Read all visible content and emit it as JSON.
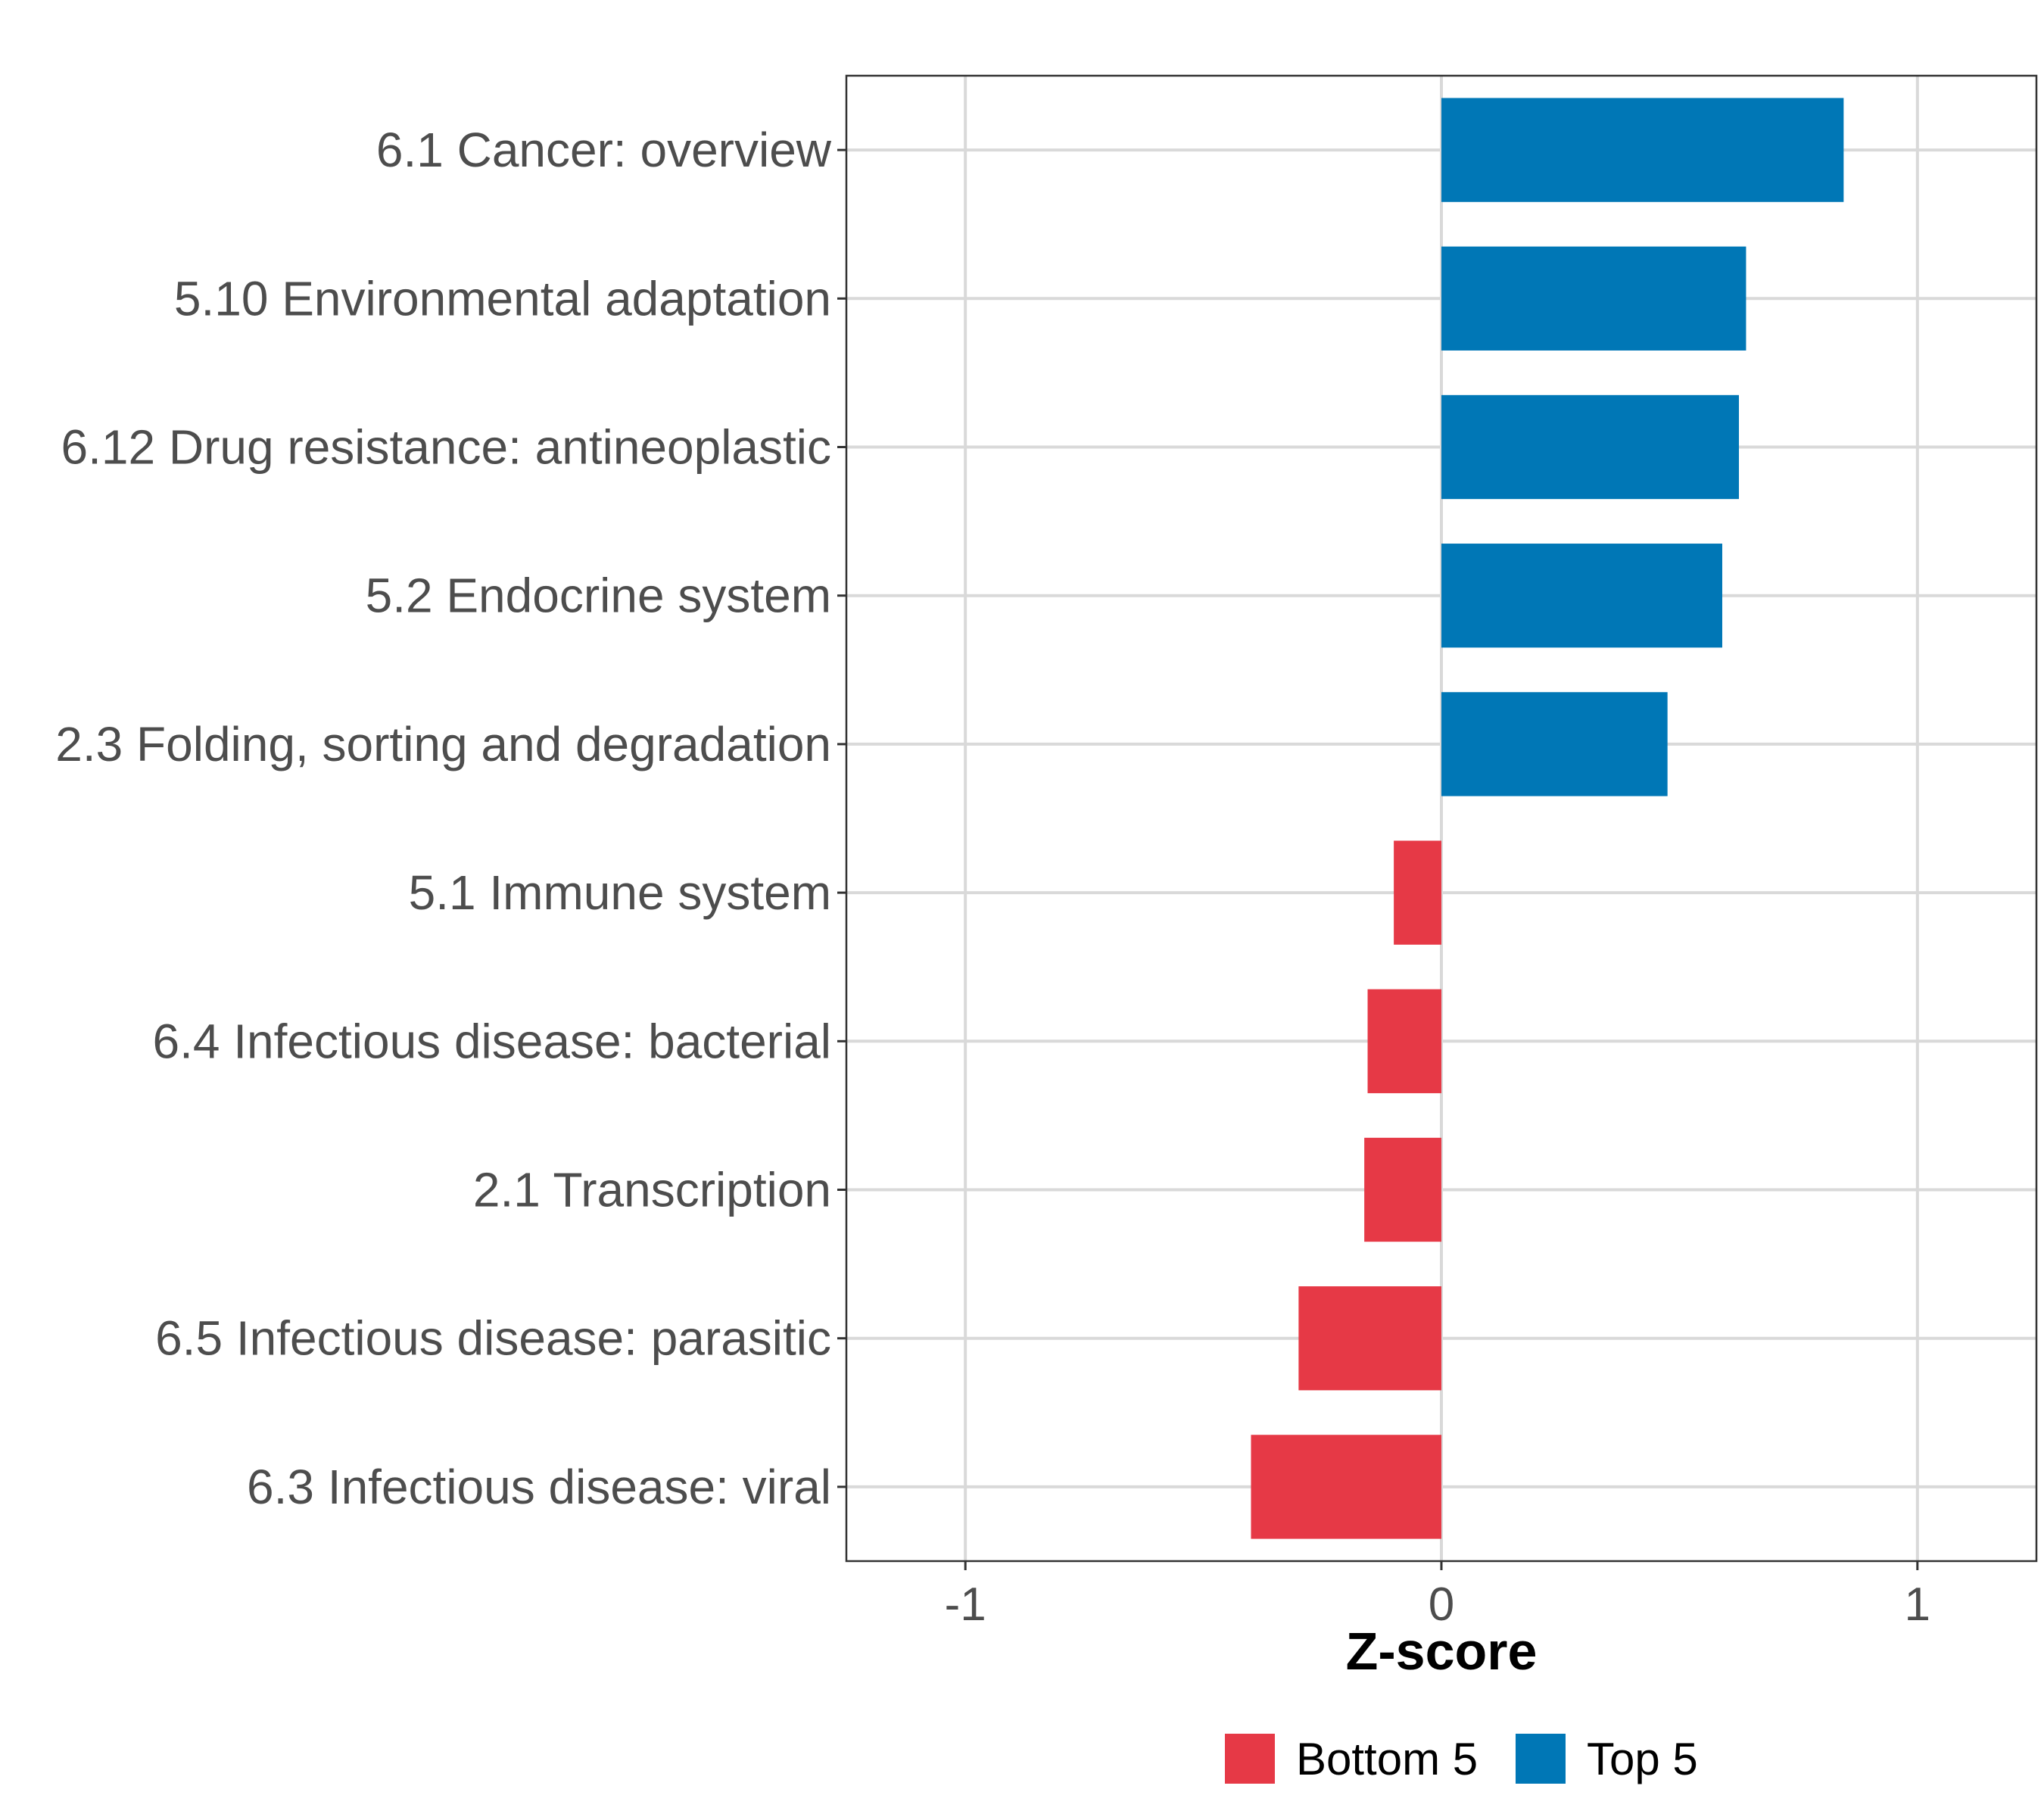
{
  "chart_data": {
    "type": "bar",
    "orientation": "horizontal",
    "title": "",
    "xlabel": "Z-score",
    "ylabel": "",
    "xlim": [
      -1.25,
      1.25
    ],
    "xticks": [
      -1,
      0,
      1
    ],
    "xtick_labels": [
      "-1",
      "0",
      "1"
    ],
    "grid": true,
    "legend_position": "bottom",
    "groups": [
      {
        "name": "Bottom 5",
        "color": "#e63946"
      },
      {
        "name": "Top 5",
        "color": "#0077b6"
      }
    ],
    "categories": [
      "6.1 Cancer: overview",
      "5.10 Environmental adaptation",
      "6.12 Drug resistance: antineoplastic",
      "5.2 Endocrine system",
      "2.3 Folding, sorting and degradation",
      "5.1 Immune system",
      "6.4 Infectious disease: bacterial",
      "2.1 Transcription",
      "6.5 Infectious disease: parasitic",
      "6.3 Infectious disease: viral"
    ],
    "values": [
      0.845,
      0.64,
      0.625,
      0.59,
      0.475,
      -0.1,
      -0.155,
      -0.162,
      -0.3,
      -0.4
    ],
    "group_of_bar": [
      "Top 5",
      "Top 5",
      "Top 5",
      "Top 5",
      "Top 5",
      "Bottom 5",
      "Bottom 5",
      "Bottom 5",
      "Bottom 5",
      "Bottom 5"
    ]
  }
}
